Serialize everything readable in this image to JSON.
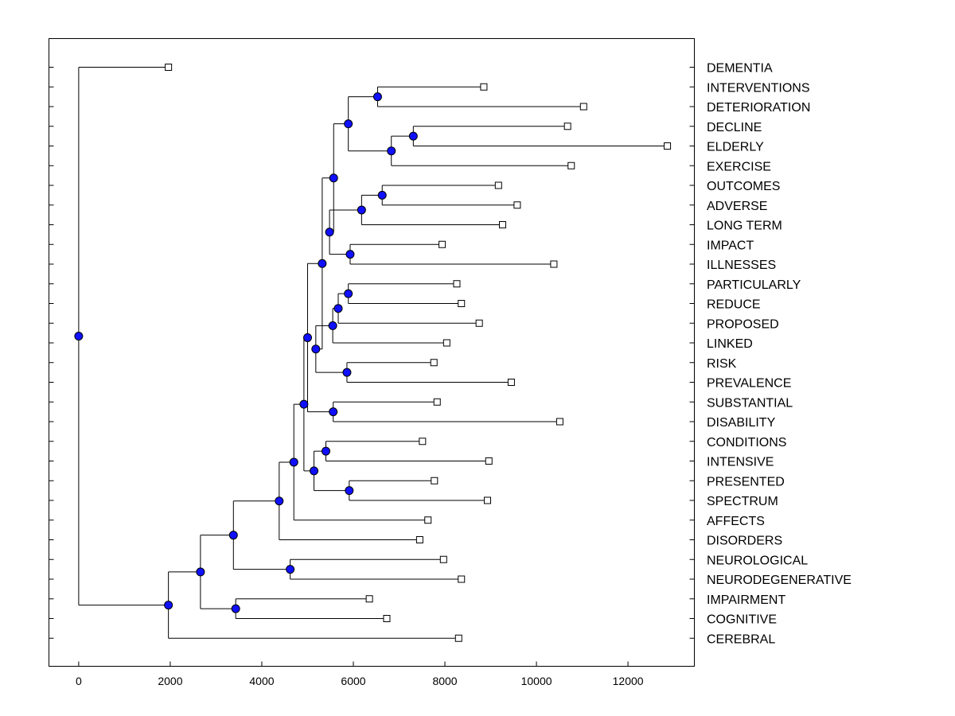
{
  "chart_data": {
    "type": "dendrogram",
    "title": "",
    "xlabel": "",
    "ylabel": "",
    "xlim": [
      -650,
      13450
    ],
    "xticks": [
      0,
      2000,
      4000,
      6000,
      8000,
      10000,
      12000
    ],
    "grid": false,
    "legend": "none",
    "colors": {
      "node": "#1010ff",
      "leaf_fill": "#ffffff",
      "line": "#000000"
    },
    "leaves": [
      {
        "label": "DEMENTIA",
        "value": 1960
      },
      {
        "label": "INTERVENTIONS",
        "value": 8850
      },
      {
        "label": "DETERIORATION",
        "value": 11030
      },
      {
        "label": "DECLINE",
        "value": 10680
      },
      {
        "label": "ELDERLY",
        "value": 12860
      },
      {
        "label": "EXERCISE",
        "value": 10760
      },
      {
        "label": "OUTCOMES",
        "value": 9170
      },
      {
        "label": "ADVERSE",
        "value": 9580
      },
      {
        "label": "LONG TERM",
        "value": 9260
      },
      {
        "label": "IMPACT",
        "value": 7940
      },
      {
        "label": "ILLNESSES",
        "value": 10380
      },
      {
        "label": "PARTICULARLY",
        "value": 8260
      },
      {
        "label": "REDUCE",
        "value": 8360
      },
      {
        "label": "PROPOSED",
        "value": 8750
      },
      {
        "label": "LINKED",
        "value": 8040
      },
      {
        "label": "RISK",
        "value": 7760
      },
      {
        "label": "PREVALENCE",
        "value": 9450
      },
      {
        "label": "SUBSTANTIAL",
        "value": 7830
      },
      {
        "label": "DISABILITY",
        "value": 10510
      },
      {
        "label": "CONDITIONS",
        "value": 7510
      },
      {
        "label": "INTENSIVE",
        "value": 8960
      },
      {
        "label": "PRESENTED",
        "value": 7770
      },
      {
        "label": "SPECTRUM",
        "value": 8930
      },
      {
        "label": "AFFECTS",
        "value": 7630
      },
      {
        "label": "DISORDERS",
        "value": 7450
      },
      {
        "label": "NEUROLOGICAL",
        "value": 7970
      },
      {
        "label": "NEURODEGENERATIVE",
        "value": 8360
      },
      {
        "label": "IMPAIRMENT",
        "value": 6350
      },
      {
        "label": "COGNITIVE",
        "value": 6730
      },
      {
        "label": "CEREBRAL",
        "value": 8300
      }
    ],
    "merges": [
      {
        "id": "n1",
        "children": [
          "INTERVENTIONS",
          "DETERIORATION"
        ],
        "value": 6530
      },
      {
        "id": "n2",
        "children": [
          "DECLINE",
          "ELDERLY"
        ],
        "value": 7310
      },
      {
        "id": "n3",
        "children": [
          "n2",
          "EXERCISE"
        ],
        "value": 6830
      },
      {
        "id": "n4",
        "children": [
          "n1",
          "n3"
        ],
        "value": 5890
      },
      {
        "id": "n5",
        "children": [
          "OUTCOMES",
          "ADVERSE"
        ],
        "value": 6630
      },
      {
        "id": "n6",
        "children": [
          "n5",
          "LONG TERM"
        ],
        "value": 6180
      },
      {
        "id": "n7",
        "children": [
          "IMPACT",
          "ILLNESSES"
        ],
        "value": 5930
      },
      {
        "id": "n8",
        "children": [
          "n6",
          "n7"
        ],
        "value": 5480
      },
      {
        "id": "n9",
        "children": [
          "n4",
          "n8"
        ],
        "value": 5570
      },
      {
        "id": "n10",
        "children": [
          "PARTICULARLY",
          "REDUCE"
        ],
        "value": 5890
      },
      {
        "id": "n11",
        "children": [
          "n10",
          "PROPOSED"
        ],
        "value": 5670
      },
      {
        "id": "n12",
        "children": [
          "n11",
          "LINKED"
        ],
        "value": 5550
      },
      {
        "id": "n13",
        "children": [
          "RISK",
          "PREVALENCE"
        ],
        "value": 5860
      },
      {
        "id": "n14",
        "children": [
          "n12",
          "n13"
        ],
        "value": 5180
      },
      {
        "id": "n15",
        "children": [
          "n9",
          "n14"
        ],
        "value": 5320
      },
      {
        "id": "n16",
        "children": [
          "SUBSTANTIAL",
          "DISABILITY"
        ],
        "value": 5560
      },
      {
        "id": "n17",
        "children": [
          "n15",
          "n16"
        ],
        "value": 5000
      },
      {
        "id": "n18",
        "children": [
          "CONDITIONS",
          "INTENSIVE"
        ],
        "value": 5400
      },
      {
        "id": "n19",
        "children": [
          "PRESENTED",
          "SPECTRUM"
        ],
        "value": 5910
      },
      {
        "id": "n20",
        "children": [
          "n18",
          "n19"
        ],
        "value": 5140
      },
      {
        "id": "n21",
        "children": [
          "n17",
          "n20"
        ],
        "value": 4920
      },
      {
        "id": "n22",
        "children": [
          "n21",
          "AFFECTS"
        ],
        "value": 4700
      },
      {
        "id": "n23",
        "children": [
          "n22",
          "DISORDERS"
        ],
        "value": 4380
      },
      {
        "id": "n24",
        "children": [
          "NEUROLOGICAL",
          "NEURODEGENERATIVE"
        ],
        "value": 4620
      },
      {
        "id": "n25",
        "children": [
          "n23",
          "n24"
        ],
        "value": 3380
      },
      {
        "id": "n26",
        "children": [
          "IMPAIRMENT",
          "COGNITIVE"
        ],
        "value": 3430
      },
      {
        "id": "n27",
        "children": [
          "n25",
          "n26"
        ],
        "value": 2660
      },
      {
        "id": "n28",
        "children": [
          "n27",
          "CEREBRAL"
        ],
        "value": 1960
      },
      {
        "id": "root",
        "children": [
          "DEMENTIA",
          "n28"
        ],
        "value": 0
      }
    ]
  }
}
